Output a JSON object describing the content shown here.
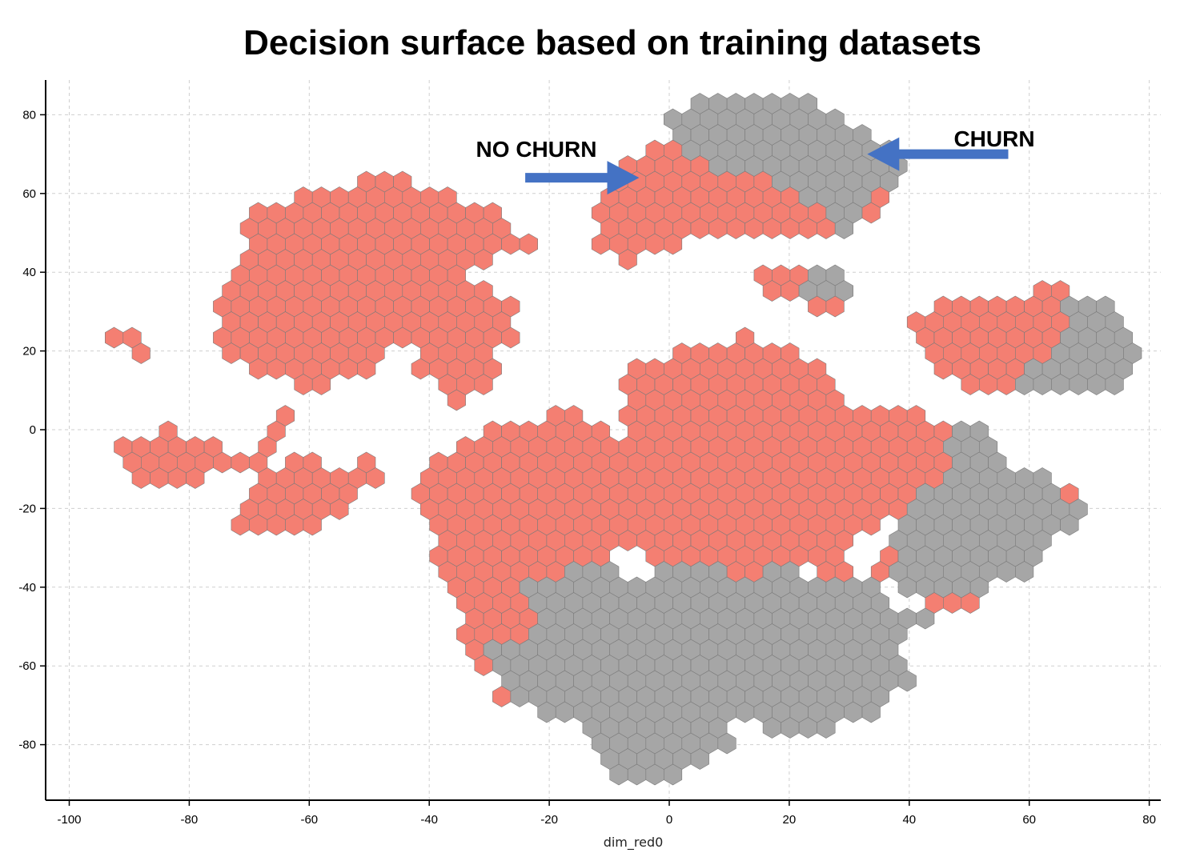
{
  "chart_data": {
    "type": "hexbin",
    "title": "Decision surface based on training datasets",
    "xlabel": "dim_red0",
    "ylabel": "",
    "xlim": [
      -104.5,
      81.5
    ],
    "ylim": [
      -94,
      89
    ],
    "x_ticks": [
      -100,
      -80,
      -60,
      -40,
      -20,
      0,
      20,
      40,
      60,
      80
    ],
    "y_ticks": [
      80,
      60,
      40,
      20,
      0,
      -20,
      -40,
      -60,
      -80
    ],
    "x_tick_labels": [
      "-100",
      "-80",
      "-60",
      "-40",
      "-20",
      "0",
      "20",
      "40",
      "60",
      "80"
    ],
    "y_tick_labels": [
      "80",
      "60",
      "40",
      "20",
      "0",
      "-20",
      "-40",
      "-60",
      "-80"
    ],
    "grid": true,
    "colors": {
      "no_churn": "#f47f72",
      "churn": "#a6a6a6",
      "arrow": "#4472c4"
    },
    "annotations": [
      {
        "text": "NO CHURN",
        "arrow_from": [
          -24,
          64
        ],
        "arrow_to": [
          -5,
          64
        ]
      },
      {
        "text": "CHURN",
        "arrow_from": [
          56.5,
          70
        ],
        "arrow_to": [
          33,
          70
        ]
      }
    ],
    "regions": [
      {
        "class": "no_churn",
        "shape": "blob",
        "polygon": [
          [
            -94,
            27
          ],
          [
            -87,
            24
          ],
          [
            -87,
            17
          ],
          [
            -95,
            22
          ]
        ]
      },
      {
        "class": "no_churn",
        "shape": "blob",
        "polygon": [
          [
            -70,
            56
          ],
          [
            -56,
            62
          ],
          [
            -47,
            65
          ],
          [
            -38,
            61
          ],
          [
            -27,
            54
          ],
          [
            -23,
            47
          ],
          [
            -35,
            38
          ],
          [
            -26,
            34
          ],
          [
            -26,
            23
          ],
          [
            -33,
            14
          ],
          [
            -44,
            14
          ],
          [
            -42,
            20
          ],
          [
            -48,
            22
          ],
          [
            -51,
            12
          ],
          [
            -56,
            16
          ],
          [
            -58,
            9
          ],
          [
            -67,
            2
          ],
          [
            -70,
            -6
          ],
          [
            -78,
            -2
          ],
          [
            -84,
            0
          ],
          [
            -92,
            -3
          ],
          [
            -88,
            -13
          ],
          [
            -75,
            -12
          ],
          [
            -66,
            -10
          ],
          [
            -64,
            -1
          ],
          [
            -62,
            3
          ],
          [
            -60,
            11
          ],
          [
            -68,
            14
          ],
          [
            -78,
            21
          ],
          [
            -74,
            33
          ],
          [
            -70,
            46
          ]
        ]
      },
      {
        "class": "no_churn",
        "shape": "blob",
        "polygon": [
          [
            -62,
            -4
          ],
          [
            -55,
            -10
          ],
          [
            -50,
            -6
          ],
          [
            -48,
            -12
          ],
          [
            -54,
            -22
          ],
          [
            -62,
            -28
          ],
          [
            -72,
            -26
          ],
          [
            -70,
            -16
          ]
        ]
      },
      {
        "class": "no_churn",
        "shape": "blob",
        "polygon": [
          [
            -39,
            17
          ],
          [
            -32,
            22
          ],
          [
            -27,
            17
          ],
          [
            -30,
            8
          ],
          [
            -38,
            7
          ]
        ]
      },
      {
        "class": "no_churn",
        "shape": "blob",
        "polygon": [
          [
            -42,
            -12
          ],
          [
            -36,
            -3
          ],
          [
            -27,
            1
          ],
          [
            -22,
            3
          ],
          [
            -17,
            6
          ],
          [
            -9,
            1
          ],
          [
            -8,
            -6
          ],
          [
            -8,
            4
          ],
          [
            -8,
            17
          ],
          [
            -4,
            15
          ],
          [
            1,
            19
          ],
          [
            6,
            22
          ],
          [
            13,
            24
          ],
          [
            20,
            20
          ],
          [
            24,
            18
          ],
          [
            26,
            12
          ],
          [
            31,
            7
          ],
          [
            38,
            5
          ],
          [
            45,
            2
          ],
          [
            49,
            -8
          ],
          [
            42,
            -20
          ],
          [
            36,
            -24
          ],
          [
            34,
            -38
          ],
          [
            44,
            -44
          ],
          [
            56,
            -48
          ],
          [
            47,
            -36
          ],
          [
            52,
            -28
          ],
          [
            59,
            -26
          ],
          [
            66,
            -24
          ],
          [
            67,
            -14
          ],
          [
            60,
            -10
          ],
          [
            56,
            -20
          ],
          [
            50,
            -22
          ],
          [
            46,
            -14
          ],
          [
            35,
            -26
          ],
          [
            31,
            -28
          ],
          [
            28,
            -42
          ],
          [
            21,
            -32
          ],
          [
            15,
            -40
          ],
          [
            12,
            -51
          ],
          [
            9,
            -48
          ],
          [
            5,
            -50
          ],
          [
            -10,
            -48
          ],
          [
            -13,
            -40
          ],
          [
            -5,
            -44
          ],
          [
            -3,
            -50
          ],
          [
            0,
            -34
          ],
          [
            -10,
            -30
          ],
          [
            -12,
            -38
          ],
          [
            -20,
            -44
          ],
          [
            -22,
            -52
          ],
          [
            -30,
            -56
          ],
          [
            -30,
            -66
          ],
          [
            -22,
            -70
          ],
          [
            -28,
            -70
          ],
          [
            -31,
            -62
          ],
          [
            -36,
            -46
          ],
          [
            -38,
            -40
          ],
          [
            -39,
            -28
          ],
          [
            -43,
            -20
          ]
        ]
      },
      {
        "class": "churn",
        "shape": "blob",
        "polygon": [
          [
            -26,
            -40
          ],
          [
            -20,
            -38
          ],
          [
            -16,
            -36
          ],
          [
            -10,
            -34
          ],
          [
            -5,
            -40
          ],
          [
            -2,
            -38
          ],
          [
            0,
            -32
          ],
          [
            8,
            -34
          ],
          [
            14,
            -38
          ],
          [
            18,
            -34
          ],
          [
            24,
            -38
          ],
          [
            30,
            -36
          ],
          [
            34,
            -38
          ],
          [
            38,
            -46
          ],
          [
            44,
            -46
          ],
          [
            38,
            -55
          ],
          [
            40,
            -64
          ],
          [
            36,
            -72
          ],
          [
            28,
            -76
          ],
          [
            18,
            -76
          ],
          [
            10,
            -74
          ],
          [
            12,
            -80
          ],
          [
            4,
            -86
          ],
          [
            -2,
            -90
          ],
          [
            -10,
            -88
          ],
          [
            -12,
            -78
          ],
          [
            -20,
            -72
          ],
          [
            -28,
            -70
          ],
          [
            -26,
            -66
          ],
          [
            -32,
            -58
          ],
          [
            -28,
            -52
          ],
          [
            -24,
            -54
          ],
          [
            -22,
            -46
          ]
        ]
      },
      {
        "class": "churn",
        "shape": "blob",
        "polygon": [
          [
            48,
            3
          ],
          [
            54,
            -2
          ],
          [
            56,
            -10
          ],
          [
            62,
            -12
          ],
          [
            66,
            -18
          ],
          [
            70,
            -22
          ],
          [
            63,
            -30
          ],
          [
            60,
            -36
          ],
          [
            56,
            -38
          ],
          [
            52,
            -40
          ],
          [
            46,
            -44
          ],
          [
            40,
            -44
          ],
          [
            38,
            -36
          ],
          [
            36,
            -26
          ],
          [
            40,
            -18
          ],
          [
            46,
            -12
          ],
          [
            46,
            -4
          ]
        ]
      },
      {
        "class": "no_churn",
        "shape": "blob",
        "polygon": [
          [
            -12,
            58
          ],
          [
            -8,
            68
          ],
          [
            -2,
            74
          ],
          [
            4,
            78
          ],
          [
            10,
            80
          ],
          [
            18,
            82
          ],
          [
            24,
            78
          ],
          [
            28,
            74
          ],
          [
            34,
            72
          ],
          [
            38,
            64
          ],
          [
            36,
            58
          ],
          [
            32,
            52
          ],
          [
            28,
            50
          ],
          [
            18,
            48
          ],
          [
            10,
            50
          ],
          [
            4,
            48
          ],
          [
            -2,
            46
          ],
          [
            -6,
            42
          ],
          [
            -10,
            44
          ],
          [
            -13,
            50
          ]
        ]
      },
      {
        "class": "churn",
        "shape": "blob",
        "polygon": [
          [
            -4,
            76
          ],
          [
            4,
            84
          ],
          [
            14,
            86
          ],
          [
            22,
            84
          ],
          [
            28,
            82
          ],
          [
            32,
            76
          ],
          [
            36,
            74
          ],
          [
            40,
            66
          ],
          [
            38,
            62
          ],
          [
            34,
            58
          ],
          [
            32,
            52
          ],
          [
            28,
            50
          ],
          [
            24,
            58
          ],
          [
            20,
            62
          ],
          [
            14,
            66
          ],
          [
            8,
            66
          ],
          [
            4,
            68
          ],
          [
            2,
            74
          ]
        ]
      },
      {
        "class": "no_churn",
        "shape": "blob",
        "polygon": [
          [
            14,
            38
          ],
          [
            18,
            42
          ],
          [
            24,
            42
          ],
          [
            28,
            38
          ],
          [
            30,
            32
          ],
          [
            26,
            30
          ],
          [
            20,
            32
          ],
          [
            16,
            34
          ]
        ]
      },
      {
        "class": "churn",
        "shape": "blob",
        "polygon": [
          [
            24,
            40
          ],
          [
            28,
            42
          ],
          [
            30,
            36
          ],
          [
            26,
            32
          ],
          [
            22,
            34
          ]
        ]
      },
      {
        "class": "no_churn",
        "shape": "blob",
        "polygon": [
          [
            40,
            28
          ],
          [
            46,
            33
          ],
          [
            56,
            33
          ],
          [
            63,
            36
          ],
          [
            70,
            35
          ],
          [
            72,
            30
          ],
          [
            68,
            22
          ],
          [
            64,
            14
          ],
          [
            60,
            10
          ],
          [
            52,
            10
          ],
          [
            46,
            13
          ],
          [
            40,
            21
          ]
        ]
      },
      {
        "class": "churn",
        "shape": "blob",
        "polygon": [
          [
            66,
            32
          ],
          [
            72,
            33
          ],
          [
            76,
            26
          ],
          [
            78,
            19
          ],
          [
            76,
            12
          ],
          [
            72,
            9
          ],
          [
            64,
            11
          ],
          [
            60,
            9
          ],
          [
            58,
            14
          ],
          [
            64,
            18
          ],
          [
            66,
            24
          ]
        ]
      }
    ]
  }
}
